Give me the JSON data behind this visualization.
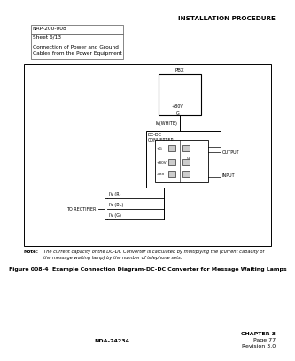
{
  "header_right": "INSTALLATION PROCEDURE",
  "info_box_lines": [
    "NAP-200-008",
    "Sheet 6/13",
    "Connection of Power and Ground\nCables from the Power Equipment"
  ],
  "figure_caption": "Figure 008-4  Example Connection Diagram-DC-DC Converter for Message Waiting Lamps",
  "footer_left": "NDA-24234",
  "footer_right_lines": [
    "CHAPTER 3",
    "Page 77",
    "Revision 3.0"
  ],
  "note_label": "Note:",
  "note_text": "The current capacity of the DC-DC Converter is calculated by multiplying the (current capacity of\nthe message waiting lamp) by the number of telephone sets.",
  "wire_labels": [
    "IV (R)",
    "IV (BL)",
    "IV (G)"
  ],
  "to_rectifier": "TO RECTIFIER",
  "bg_color": "#ffffff"
}
